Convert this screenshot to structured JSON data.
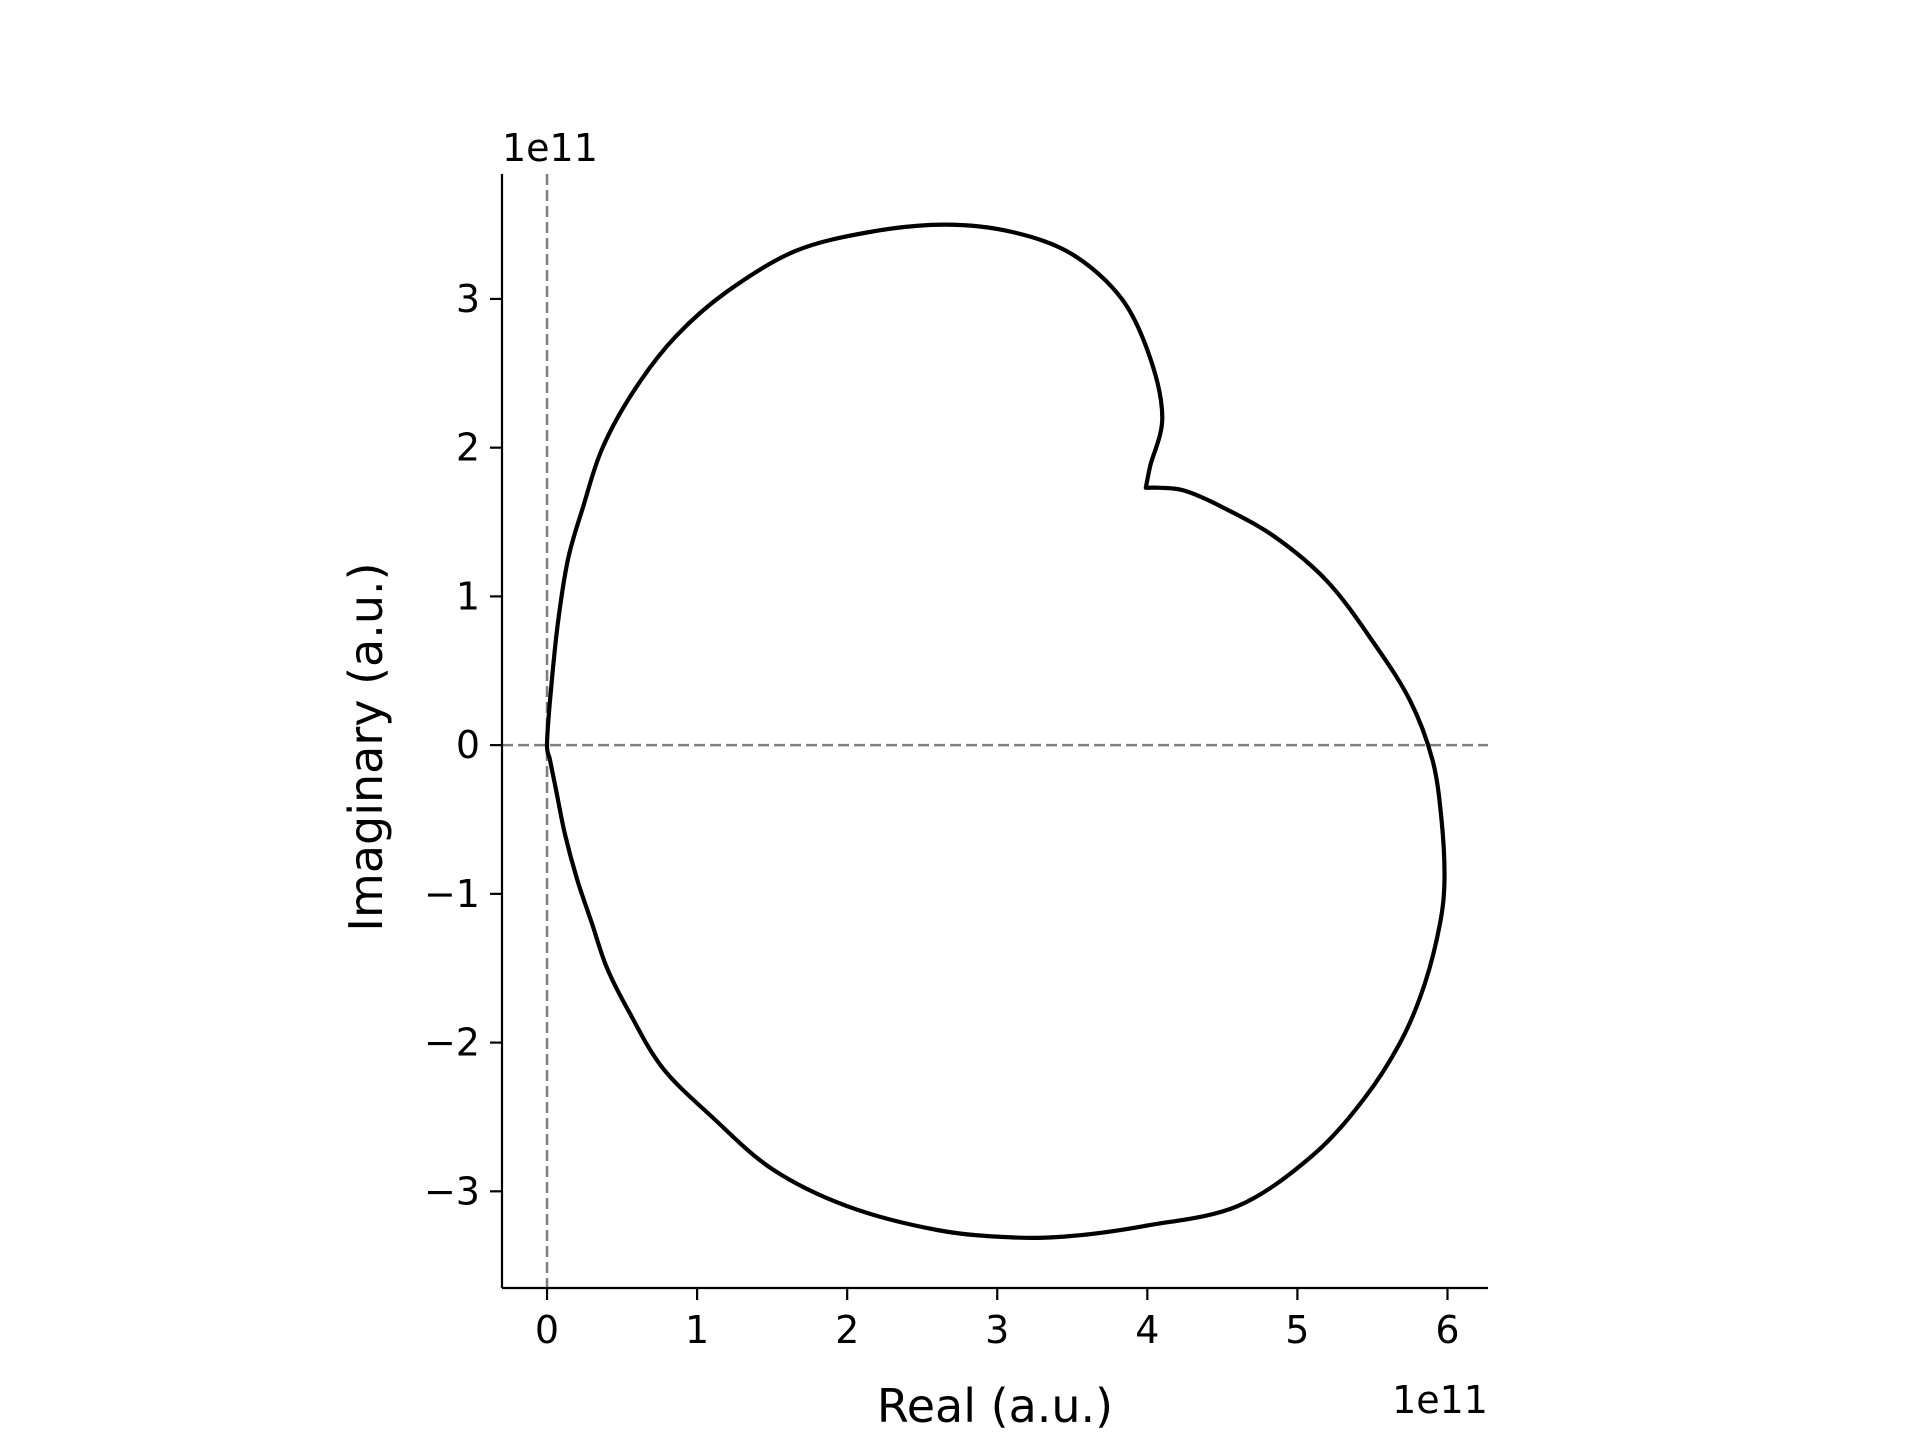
{
  "chart_data": {
    "type": "line",
    "title": "",
    "xlabel": "Real (a.u.)",
    "ylabel": "Imaginary (a.u.)",
    "x_offset_text": "1e11",
    "y_offset_text": "1e11",
    "x_scale_factor": 100000000000.0,
    "y_scale_factor": 100000000000.0,
    "xlim": [
      -0.3,
      6.27
    ],
    "ylim": [
      -3.65,
      3.84
    ],
    "xticks": [
      0,
      1,
      2,
      3,
      4,
      5,
      6
    ],
    "xtick_labels": [
      "0",
      "1",
      "2",
      "3",
      "4",
      "5",
      "6"
    ],
    "yticks": [
      -3,
      -2,
      -1,
      0,
      1,
      2,
      3
    ],
    "ytick_labels": [
      "−3",
      "−2",
      "−1",
      "0",
      "1",
      "2",
      "3"
    ],
    "grid": false,
    "reference_lines": [
      {
        "orientation": "vertical",
        "value": 0,
        "style": "dashed",
        "color": "#808080"
      },
      {
        "orientation": "horizontal",
        "value": 0,
        "style": "dashed",
        "color": "#808080"
      }
    ],
    "series": [
      {
        "color": "#000000",
        "x": [
          3.99,
          4.09,
          4.25,
          4.5,
          4.85,
          5.2,
          5.5,
          5.75,
          5.9,
          5.96,
          5.98,
          5.95,
          5.85,
          5.7,
          5.45,
          5.1,
          4.6,
          4.0,
          3.5,
          3.1,
          2.6,
          2.0,
          1.5,
          1.1,
          0.77,
          0.55,
          0.4,
          0.3,
          0.2,
          0.12,
          0.06,
          0.02,
          0.0,
          0.02,
          0.07,
          0.14,
          0.24,
          0.37,
          0.59,
          0.86,
          1.2,
          1.65,
          2.15,
          2.65,
          3.1,
          3.5,
          3.83,
          4.02,
          4.1,
          4.02,
          3.99
        ],
        "y": [
          1.73,
          1.73,
          1.71,
          1.6,
          1.4,
          1.1,
          0.7,
          0.3,
          -0.1,
          -0.5,
          -0.9,
          -1.2,
          -1.6,
          -1.97,
          -2.37,
          -2.76,
          -3.1,
          -3.23,
          -3.3,
          -3.31,
          -3.26,
          -3.1,
          -2.85,
          -2.5,
          -2.17,
          -1.8,
          -1.5,
          -1.2,
          -0.9,
          -0.6,
          -0.3,
          -0.1,
          0.0,
          0.3,
          0.8,
          1.25,
          1.6,
          2.0,
          2.4,
          2.75,
          3.05,
          3.32,
          3.45,
          3.5,
          3.45,
          3.3,
          3.0,
          2.6,
          2.2,
          1.88,
          1.73
        ]
      }
    ]
  }
}
